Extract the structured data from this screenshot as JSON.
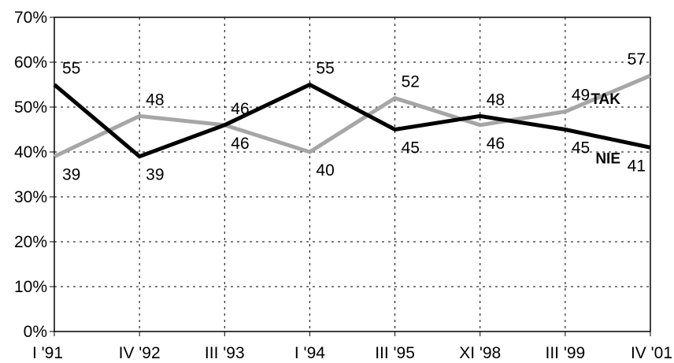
{
  "chart_data": {
    "type": "line",
    "title": "",
    "xlabel": "",
    "ylabel": "",
    "categories": [
      "I '91",
      "IV '92",
      "III '93",
      "I '94",
      "III '95",
      "XI '98",
      "III '99",
      "IV '01"
    ],
    "ylim": [
      0,
      70
    ],
    "yticks": [
      "0%",
      "10%",
      "20%",
      "30%",
      "40%",
      "50%",
      "60%",
      "70%"
    ],
    "grid": true,
    "series": [
      {
        "name": "NIE",
        "color": "#000000",
        "values": [
          55,
          39,
          46,
          55,
          45,
          48,
          45,
          41
        ],
        "labels": [
          "55",
          "39",
          "46",
          "55",
          "45",
          "48",
          "45",
          "41"
        ]
      },
      {
        "name": "TAK",
        "color": "#a6a6a6",
        "values": [
          39,
          48,
          46,
          40,
          52,
          46,
          49,
          57
        ],
        "labels": [
          "39",
          "48",
          "46",
          "40",
          "52",
          "46",
          "49",
          "57"
        ]
      }
    ]
  }
}
